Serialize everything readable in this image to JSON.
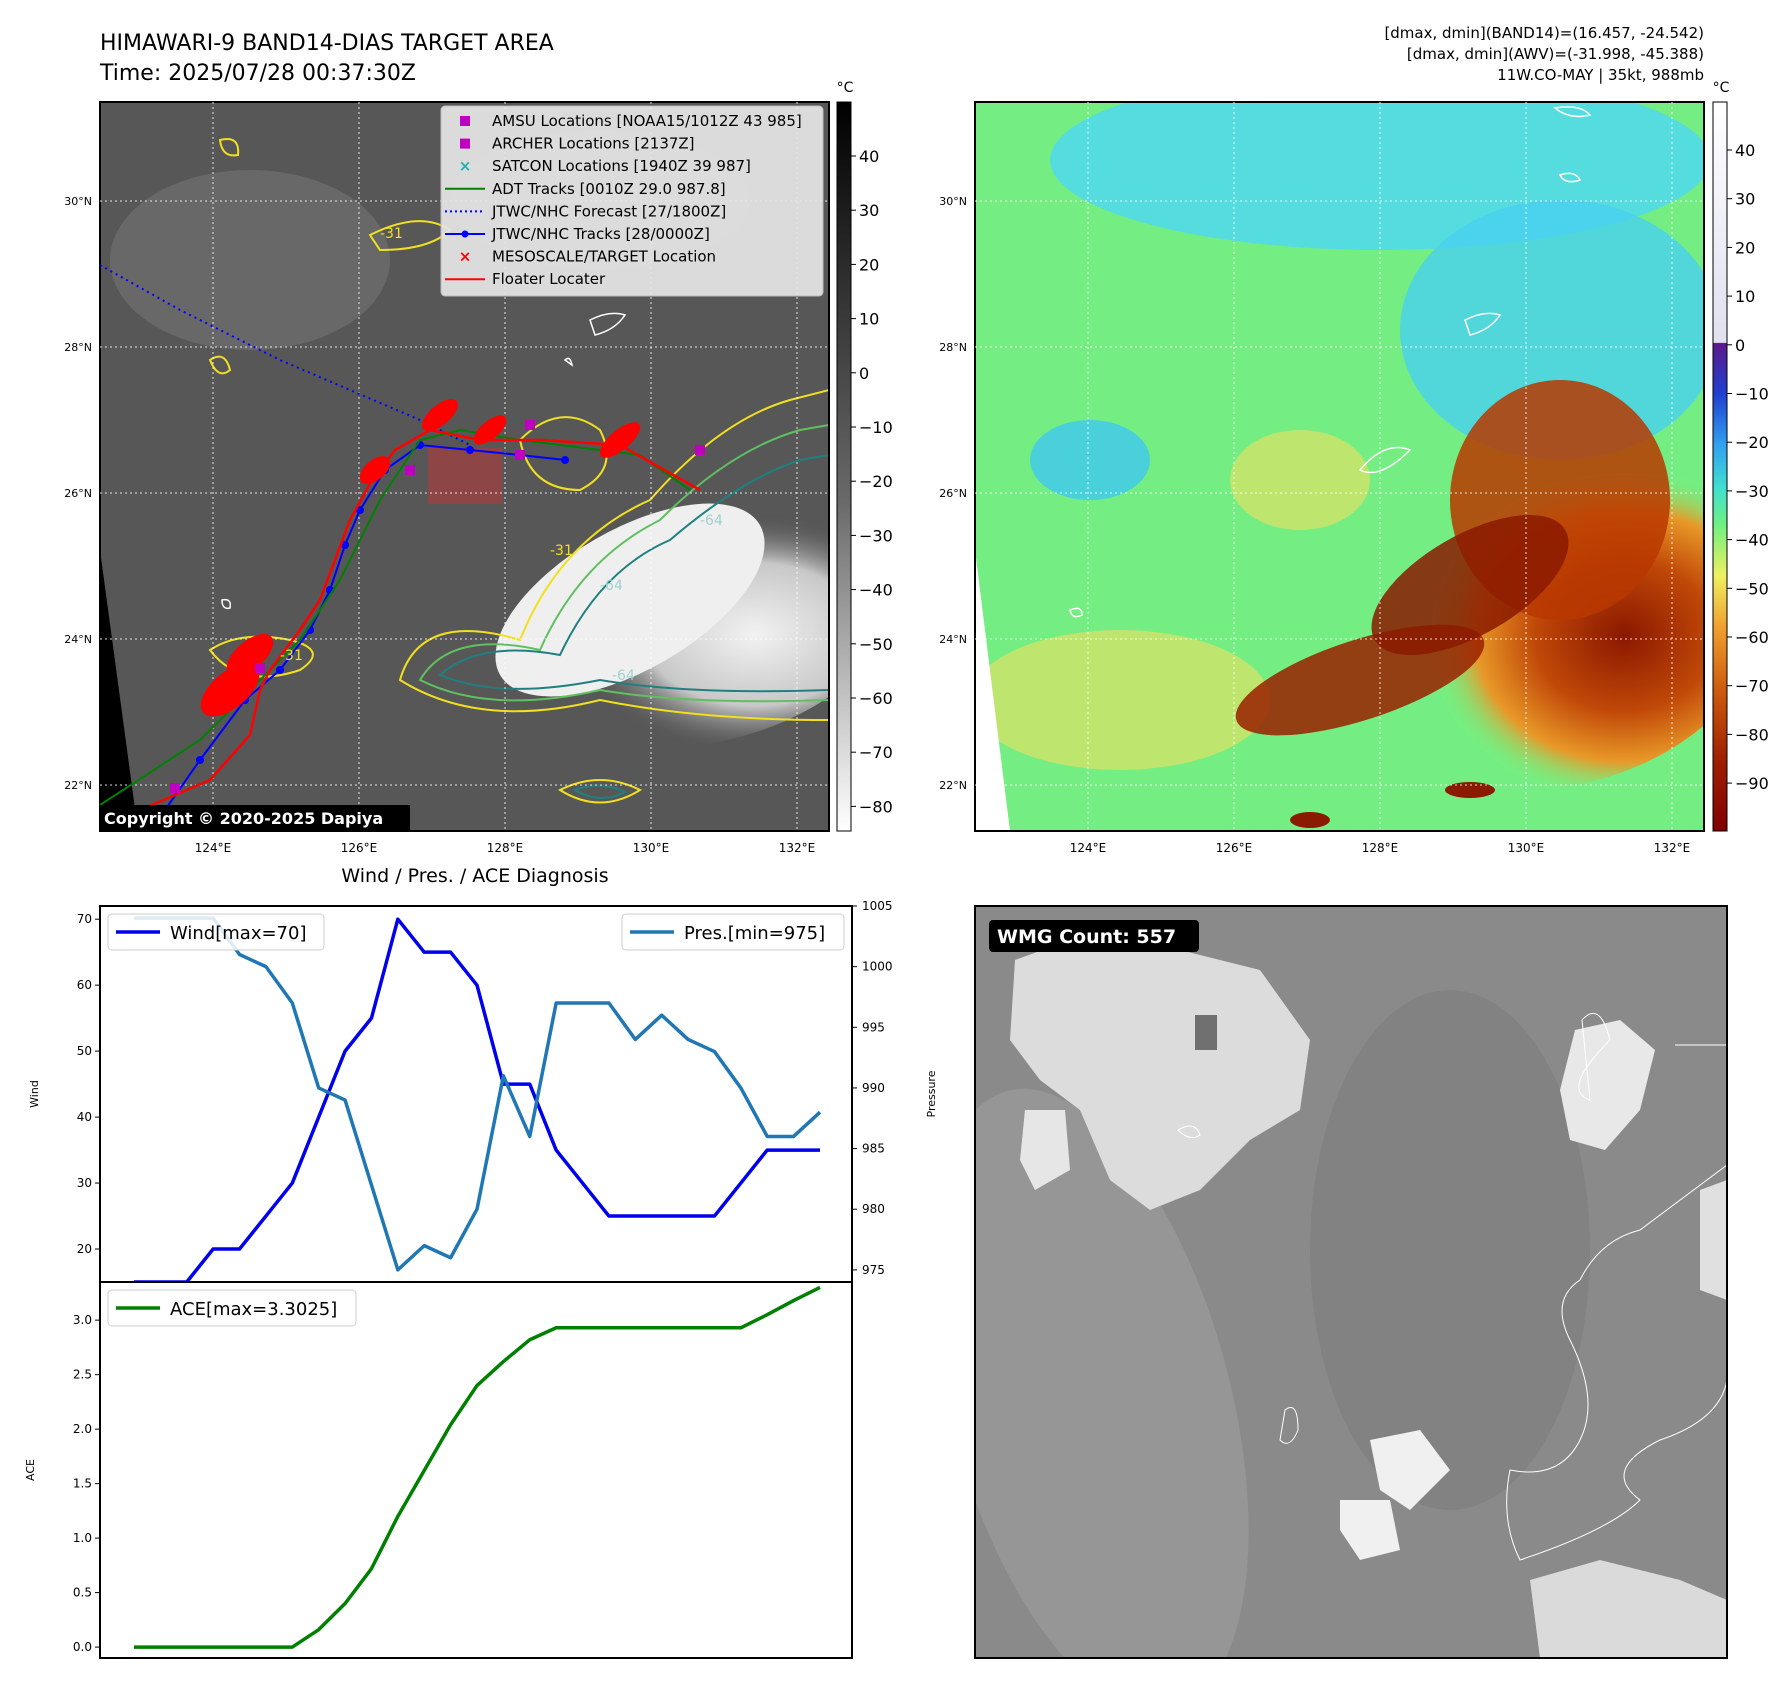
{
  "header": {
    "title_line1": "HIMAWARI-9 BAND14-DIAS TARGET AREA",
    "title_line2": "Time: 2025/07/28 00:37:30Z",
    "info_line1": "[dmax, dmin](BAND14)=(16.457, -24.542)",
    "info_line2": "[dmax, dmin](AWV)=(-31.998, -45.388)",
    "info_line3": "11W.CO-MAY | 35kt, 988mb"
  },
  "map_axes": {
    "lat_labels": [
      "30°N",
      "28°N",
      "26°N",
      "24°N",
      "22°N"
    ],
    "lon_labels": [
      "124°E",
      "126°E",
      "128°E",
      "130°E",
      "132°E"
    ]
  },
  "colorbar1": {
    "unit": "°C",
    "ticks": [
      "40",
      "30",
      "20",
      "10",
      "0",
      "−10",
      "−20",
      "−30",
      "−40",
      "−50",
      "−60",
      "−70",
      "−80"
    ]
  },
  "colorbar2": {
    "unit": "°C",
    "ticks": [
      "40",
      "30",
      "20",
      "10",
      "0",
      "−10",
      "−20",
      "−30",
      "−40",
      "−50",
      "−60",
      "−70",
      "−80",
      "−90"
    ]
  },
  "legend": {
    "items": [
      {
        "label": "AMSU Locations [NOAA15/1012Z 43 985]",
        "marker": "square",
        "color": "#c000c0"
      },
      {
        "label": "ARCHER Locations [2137Z]",
        "marker": "square",
        "color": "#c000c0"
      },
      {
        "label": "SATCON Locations [1940Z 39 987]",
        "marker": "x",
        "color": "#20b0b0"
      },
      {
        "label": "ADT Tracks [0010Z 29.0 987.8]",
        "marker": "line",
        "color": "#008000"
      },
      {
        "label": "JTWC/NHC Forecast [27/1800Z]",
        "marker": "dotted",
        "color": "#0000ff"
      },
      {
        "label": "JTWC/NHC Tracks [28/0000Z]",
        "marker": "linedot",
        "color": "#0000ff"
      },
      {
        "label": "MESOSCALE/TARGET Location",
        "marker": "x",
        "color": "#ff0000"
      },
      {
        "label": "Floater Locater",
        "marker": "line",
        "color": "#ff0000"
      }
    ]
  },
  "copyright": "Copyright © 2020-2025 Dapiya",
  "contour_labels": [
    "-31",
    "-64",
    "-64",
    "-64",
    "-31",
    "-31"
  ],
  "wmg": {
    "label": "WMG Count: 557"
  },
  "chart_data": [
    {
      "type": "line",
      "title": "Wind / Pres. / ACE Diagnosis",
      "ylabel": "Wind",
      "y2label": "Pressure",
      "ylim": [
        15,
        72
      ],
      "y2lim": [
        974,
        1005
      ],
      "yticks": [
        "70",
        "60",
        "50",
        "40",
        "30",
        "20"
      ],
      "y2ticks": [
        "1005",
        "1000",
        "995",
        "990",
        "985",
        "980",
        "975"
      ],
      "series": [
        {
          "name": "Wind[max=70]",
          "axis": "left",
          "color": "#0000ee",
          "values": [
            15,
            15,
            15,
            20,
            20,
            25,
            30,
            40,
            50,
            55,
            70,
            65,
            65,
            60,
            45,
            45,
            35,
            30,
            25,
            25,
            25,
            25,
            25,
            30,
            35,
            35,
            35
          ]
        },
        {
          "name": "Pres.[min=975]",
          "axis": "right",
          "color": "#1f77b4",
          "values": [
            1004,
            1004,
            1004,
            1004,
            1001,
            1000,
            997,
            990,
            989,
            982,
            975,
            977,
            976,
            980,
            991,
            986,
            997,
            997,
            997,
            994,
            996,
            994,
            993,
            990,
            986,
            986,
            988
          ]
        }
      ]
    },
    {
      "type": "line",
      "ylabel": "ACE",
      "ylim": [
        -0.1,
        3.35
      ],
      "yticks": [
        "3.0",
        "2.5",
        "2.0",
        "1.5",
        "1.0",
        "0.5",
        "0.0"
      ],
      "series": [
        {
          "name": "ACE[max=3.3025]",
          "color": "#008000",
          "values": [
            0,
            0,
            0,
            0,
            0,
            0,
            0,
            0.16,
            0.4,
            0.72,
            1.2,
            1.62,
            2.04,
            2.4,
            2.62,
            2.82,
            2.93,
            2.93,
            2.93,
            2.93,
            2.93,
            2.93,
            2.93,
            2.93,
            3.05,
            3.18,
            3.3
          ]
        }
      ]
    }
  ]
}
